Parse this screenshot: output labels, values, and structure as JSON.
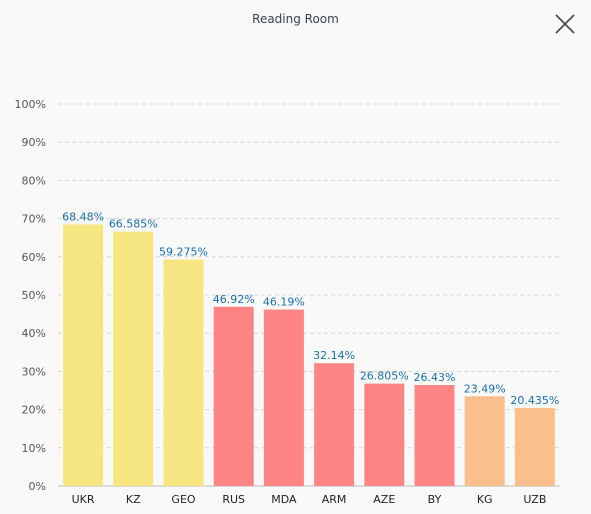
{
  "window": {
    "title": "Reading Room"
  },
  "colors": {
    "yellow": "#f5e681",
    "red": "#ff8585",
    "orange": "#f9c08e",
    "label": "#1a6fa8",
    "grid": "#d6d6d6"
  },
  "chart_data": {
    "type": "bar",
    "categories": [
      "UKR",
      "KZ",
      "GEO",
      "RUS",
      "MDA",
      "ARM",
      "AZE",
      "BY",
      "KG",
      "UZB"
    ],
    "values": [
      68.48,
      66.585,
      59.275,
      46.92,
      46.19,
      32.14,
      26.805,
      26.43,
      23.49,
      20.435
    ],
    "value_labels": [
      "68.48%",
      "66.585%",
      "59.275%",
      "46.92%",
      "46.19%",
      "32.14%",
      "26.805%",
      "26.43%",
      "23.49%",
      "20.435%"
    ],
    "bar_colors": [
      "yellow",
      "yellow",
      "yellow",
      "red",
      "red",
      "red",
      "red",
      "red",
      "orange",
      "orange"
    ],
    "y_ticks": [
      "0%",
      "10%",
      "20%",
      "30%",
      "40%",
      "50%",
      "60%",
      "70%",
      "80%",
      "90%",
      "100%"
    ],
    "ylim": [
      0,
      100
    ],
    "grid": true,
    "legend": "none"
  }
}
